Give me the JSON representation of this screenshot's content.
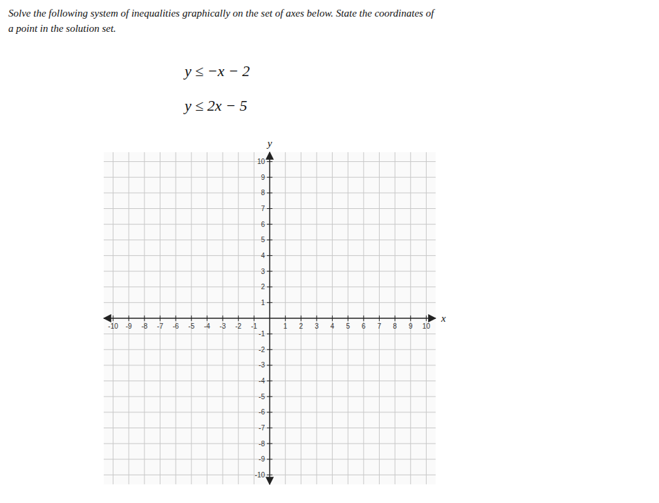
{
  "chart_data": {
    "type": "plane",
    "title": "Solve the following system of inequalities graphically on the set of axes below. State the coordinates of",
    "subtitle": "a point in the solution set.",
    "annotations": [
      "y ≤ −x − 2",
      "y ≤ 2x − 5"
    ],
    "x_label": "x",
    "y_label": "y",
    "xlim": [
      -10.6,
      10.6
    ],
    "ylim": [
      -10.6,
      10.6
    ],
    "xticks": [
      -10,
      -9,
      -8,
      -7,
      -6,
      -5,
      -4,
      -3,
      -2,
      -1,
      1,
      2,
      3,
      4,
      5,
      6,
      7,
      8,
      9,
      10
    ],
    "yticks": [
      -10,
      -9,
      -8,
      -7,
      -6,
      -5,
      -4,
      -3,
      -2,
      -1,
      1,
      2,
      3,
      4,
      5,
      6,
      7,
      8,
      9,
      10
    ],
    "grid": true
  }
}
